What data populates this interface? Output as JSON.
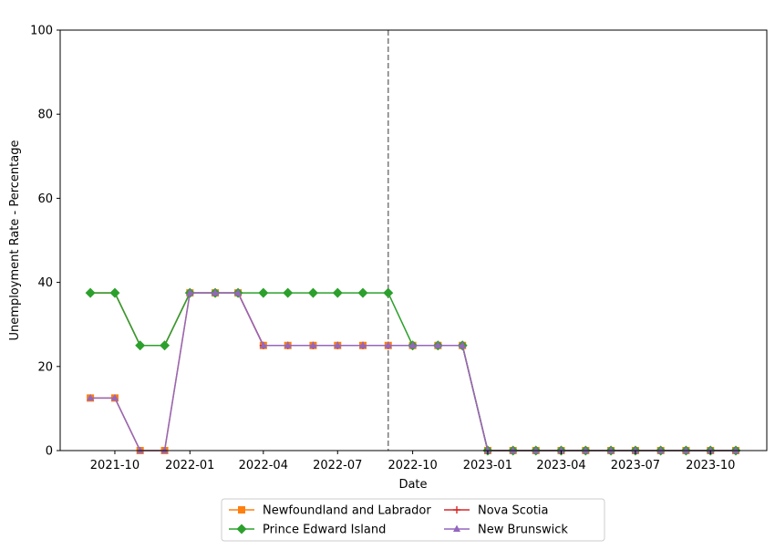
{
  "chart_data": {
    "type": "line",
    "title": "",
    "xlabel": "Date",
    "ylabel": "Unemployment Rate - Percentage",
    "ylim": [
      0,
      100
    ],
    "xlim": [
      "2021-07-26",
      "2023-12-09"
    ],
    "yticks": [
      0,
      20,
      40,
      60,
      80,
      100
    ],
    "xticks": [
      {
        "date": "2021-10-01",
        "label": "2021-10"
      },
      {
        "date": "2022-01-01",
        "label": "2022-01"
      },
      {
        "date": "2022-04-01",
        "label": "2022-04"
      },
      {
        "date": "2022-07-01",
        "label": "2022-07"
      },
      {
        "date": "2022-10-01",
        "label": "2022-10"
      },
      {
        "date": "2023-01-01",
        "label": "2023-01"
      },
      {
        "date": "2023-04-01",
        "label": "2023-04"
      },
      {
        "date": "2023-07-01",
        "label": "2023-07"
      },
      {
        "date": "2023-10-01",
        "label": "2023-10"
      }
    ],
    "x": [
      "2021-09-01",
      "2021-10-01",
      "2021-11-01",
      "2021-12-01",
      "2022-01-01",
      "2022-02-01",
      "2022-03-01",
      "2022-04-01",
      "2022-05-01",
      "2022-06-01",
      "2022-07-01",
      "2022-08-01",
      "2022-09-01",
      "2022-10-01",
      "2022-11-01",
      "2022-12-01",
      "2023-01-01",
      "2023-02-01",
      "2023-03-01",
      "2023-04-01",
      "2023-05-01",
      "2023-06-01",
      "2023-07-01",
      "2023-08-01",
      "2023-09-01",
      "2023-10-01",
      "2023-11-01"
    ],
    "vline": {
      "date": "2022-09-01",
      "style": "dashed",
      "color": "#808080"
    },
    "series": [
      {
        "name": "Newfoundland and Labrador",
        "color": "#ff7f0e",
        "marker": "square",
        "values": [
          12.5,
          12.5,
          0,
          0,
          37.5,
          37.5,
          37.5,
          25,
          25,
          25,
          25,
          25,
          25,
          25,
          25,
          25,
          0,
          0,
          0,
          0,
          0,
          0,
          0,
          0,
          0,
          0,
          0
        ]
      },
      {
        "name": "Prince Edward Island",
        "color": "#2ca02c",
        "marker": "diamond",
        "values": [
          37.5,
          37.5,
          25,
          25,
          37.5,
          37.5,
          37.5,
          37.5,
          37.5,
          37.5,
          37.5,
          37.5,
          37.5,
          25,
          25,
          25,
          0,
          0,
          0,
          0,
          0,
          0,
          0,
          0,
          0,
          0,
          0
        ]
      },
      {
        "name": "Nova Scotia",
        "color": "#d62728",
        "marker": "plus",
        "values": [
          37.5,
          37.5,
          25,
          25,
          37.5,
          37.5,
          37.5,
          25,
          25,
          25,
          25,
          25,
          25,
          25,
          25,
          25,
          0,
          0,
          0,
          0,
          0,
          0,
          0,
          0,
          0,
          0,
          0
        ]
      },
      {
        "name": "New Brunswick",
        "color": "#9467bd",
        "marker": "triangle",
        "values": [
          12.5,
          12.5,
          0,
          0,
          37.5,
          37.5,
          37.5,
          25,
          25,
          25,
          25,
          25,
          25,
          25,
          25,
          25,
          0,
          0,
          0,
          0,
          0,
          0,
          0,
          0,
          0,
          0,
          0
        ]
      }
    ],
    "draw_order": [
      0,
      2,
      1,
      3
    ],
    "legend": {
      "placement": "bottom-center",
      "columns": 2,
      "order": [
        0,
        1,
        2,
        3
      ]
    },
    "grid": false
  }
}
